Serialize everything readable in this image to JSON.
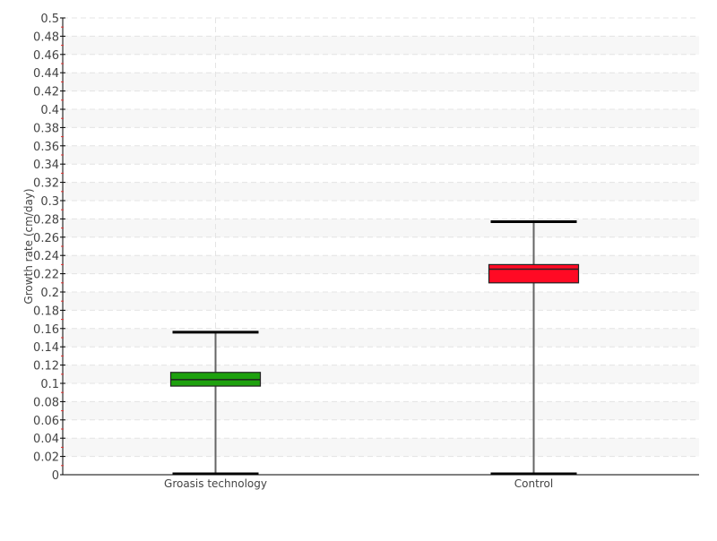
{
  "chart_data": {
    "type": "box",
    "title": "",
    "xlabel": "",
    "ylabel": "Growth rate (cm/day)",
    "ylim": [
      0,
      0.5
    ],
    "ytick_step": 0.02,
    "grid": true,
    "categories": [
      "Groasis technology",
      "Control"
    ],
    "boxes": [
      {
        "category": "Groasis technology",
        "min": 0.0,
        "q1": 0.097,
        "median": 0.104,
        "q3": 0.112,
        "max": 0.156,
        "color": "#1ea10e"
      },
      {
        "category": "Control",
        "min": 0.0,
        "q1": 0.21,
        "median": 0.225,
        "q3": 0.23,
        "max": 0.277,
        "color": "#ff0a24"
      }
    ]
  }
}
